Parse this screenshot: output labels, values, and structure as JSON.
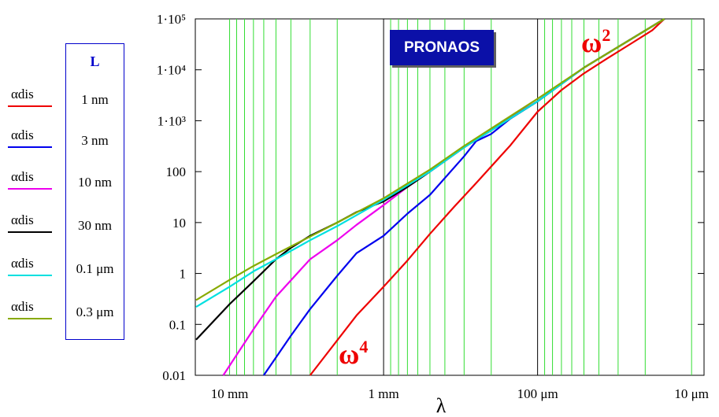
{
  "chart_data": {
    "type": "line",
    "x_scale": "log",
    "y_scale": "log",
    "xlabel": "λ",
    "ylabel": "",
    "title": "",
    "ylim": [
      0.01,
      100000
    ],
    "xlim_mm": [
      16.7,
      0.0083
    ],
    "x_tick_labels": [
      {
        "mm": 10,
        "label": "10 mm"
      },
      {
        "mm": 1,
        "label": "1 mm"
      },
      {
        "mm": 0.1,
        "label": "100 μm"
      },
      {
        "mm": 0.01,
        "label": "10 μm"
      }
    ],
    "y_tick_labels": [
      "1·10⁵",
      "1·10⁴",
      "1·10³",
      "100",
      "10",
      "1",
      "0.1",
      "0.01"
    ],
    "y_tick_values": [
      100000,
      10000,
      1000,
      100,
      10,
      1,
      0.1,
      0.01
    ],
    "grid": true,
    "grid_color": "#33dd33",
    "legend_title": "L",
    "series": [
      {
        "name": "αdis",
        "L": "1 nm",
        "color": "#ee0000",
        "x": [
          3.0,
          1.5,
          1.0,
          0.7,
          0.5,
          0.35,
          0.25,
          0.15,
          0.1,
          0.07,
          0.05,
          0.035,
          0.025,
          0.018,
          0.015
        ],
        "y": [
          0.01,
          0.15,
          0.55,
          1.8,
          6,
          20,
          60,
          330,
          1500,
          4000,
          8500,
          17000,
          32000,
          60000,
          100000
        ]
      },
      {
        "name": "αdis",
        "L": "3 nm",
        "color": "#0000ee",
        "x": [
          6.0,
          4.0,
          3.0,
          2.0,
          1.5,
          1.0,
          0.7,
          0.5,
          0.3,
          0.25,
          0.2,
          0.15,
          0.1,
          0.05,
          0.015
        ],
        "y": [
          0.01,
          0.06,
          0.2,
          0.9,
          2.5,
          5.5,
          15,
          35,
          200,
          400,
          550,
          1100,
          2400,
          11000,
          100000
        ]
      },
      {
        "name": "αdis",
        "L": "10 nm",
        "color": "#ee00ee",
        "x": [
          11.0,
          7.0,
          5.0,
          3.0,
          2.0,
          1.5,
          1.0,
          0.7,
          0.5,
          0.3,
          0.2,
          0.1,
          0.05,
          0.015
        ],
        "y": [
          0.01,
          0.08,
          0.35,
          1.9,
          4.5,
          9,
          22,
          50,
          100,
          300,
          700,
          2400,
          11000,
          100000
        ]
      },
      {
        "name": "αdis",
        "L": "30 nm",
        "color": "#000000",
        "x": [
          16.5,
          10.0,
          7.0,
          5.0,
          4.0,
          3.0,
          2.0,
          1.5,
          1.0,
          0.7,
          0.5,
          0.3,
          0.1,
          0.05,
          0.015
        ],
        "y": [
          0.05,
          0.25,
          0.7,
          1.9,
          3.2,
          5.5,
          10,
          16,
          26,
          50,
          100,
          300,
          2400,
          11000,
          100000
        ]
      },
      {
        "name": "αdis",
        "L": "0.1 μm",
        "color": "#00e0e0",
        "x": [
          16.5,
          10.0,
          7.0,
          5.0,
          3.0,
          2.0,
          1.0,
          0.5,
          0.3,
          0.1,
          0.05,
          0.015
        ],
        "y": [
          0.22,
          0.55,
          1.1,
          1.9,
          4.5,
          8.5,
          28,
          100,
          300,
          2400,
          11000,
          100000
        ]
      },
      {
        "name": "αdis",
        "L": "0.3 μm",
        "color": "#88aa00",
        "x": [
          16.5,
          10.0,
          7.0,
          5.0,
          3.0,
          2.0,
          1.0,
          0.5,
          0.3,
          0.1,
          0.05,
          0.015
        ],
        "y": [
          0.3,
          0.75,
          1.4,
          2.4,
          5.3,
          10,
          30,
          110,
          320,
          2700,
          11000,
          100000
        ]
      }
    ],
    "annotations": [
      {
        "text": "ω",
        "sup": "2",
        "color": "#ee0000",
        "near": "upper right"
      },
      {
        "text": "ω",
        "sup": "4",
        "color": "#ee0000",
        "near": "lower middle"
      }
    ],
    "badge": "PRONAOS"
  }
}
